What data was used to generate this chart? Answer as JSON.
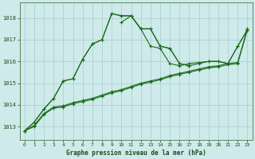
{
  "title": "Graphe pression niveau de la mer (hPa)",
  "bg_color": "#ceeaea",
  "grid_color": "#aacccc",
  "line_color": "#1a6b1a",
  "hours": [
    0,
    1,
    2,
    3,
    4,
    5,
    6,
    7,
    8,
    9,
    10,
    11,
    12,
    13,
    14,
    15,
    16,
    17,
    18,
    19,
    20,
    21,
    22,
    23
  ],
  "s1": [
    1012.8,
    1013.2,
    1013.8,
    1014.3,
    1015.1,
    1015.2,
    1016.1,
    1016.8,
    1017.0,
    1018.2,
    1018.1,
    1018.1,
    1017.5,
    1017.5,
    1016.7,
    1016.6,
    1015.9,
    1015.8,
    null,
    null,
    null,
    null,
    null,
    null
  ],
  "s2": [
    null,
    null,
    null,
    null,
    null,
    null,
    null,
    null,
    null,
    null,
    1017.8,
    1018.1,
    1017.5,
    1016.7,
    1016.6,
    1015.9,
    1015.8,
    1015.9,
    1015.95,
    1016.0,
    1016.0,
    1015.9,
    1016.7,
    1017.45
  ],
  "s3": [
    1012.8,
    1013.2,
    1013.8,
    1014.3,
    1015.1,
    1015.2,
    1016.1,
    1016.8,
    1017.0,
    1018.2,
    1018.1,
    1018.1,
    1017.5,
    1017.5,
    1016.7,
    1016.6,
    1015.9,
    1015.8,
    1015.9,
    1016.0,
    1016.0,
    1015.9,
    1016.7,
    1017.45
  ],
  "s4": [
    1012.8,
    1013.0,
    1013.55,
    1013.85,
    1013.9,
    1014.05,
    1014.15,
    1014.25,
    1014.4,
    1014.55,
    1014.65,
    1014.8,
    1014.95,
    1015.05,
    1015.15,
    1015.3,
    1015.4,
    1015.5,
    1015.6,
    1015.7,
    1015.75,
    1015.85,
    1015.9,
    1017.45
  ],
  "s5": [
    1012.8,
    1013.05,
    1013.6,
    1013.9,
    1013.95,
    1014.1,
    1014.2,
    1014.3,
    1014.45,
    1014.6,
    1014.7,
    1014.85,
    1015.0,
    1015.1,
    1015.2,
    1015.35,
    1015.45,
    1015.55,
    1015.65,
    1015.75,
    1015.8,
    1015.9,
    1015.95,
    1017.5
  ],
  "ylim": [
    1012.4,
    1018.7
  ],
  "yticks": [
    1013,
    1014,
    1015,
    1016,
    1017,
    1018
  ],
  "xlim": [
    -0.5,
    23.5
  ],
  "xticks": [
    0,
    1,
    2,
    3,
    4,
    5,
    6,
    7,
    8,
    9,
    10,
    11,
    12,
    13,
    14,
    15,
    16,
    17,
    18,
    19,
    20,
    21,
    22,
    23
  ]
}
